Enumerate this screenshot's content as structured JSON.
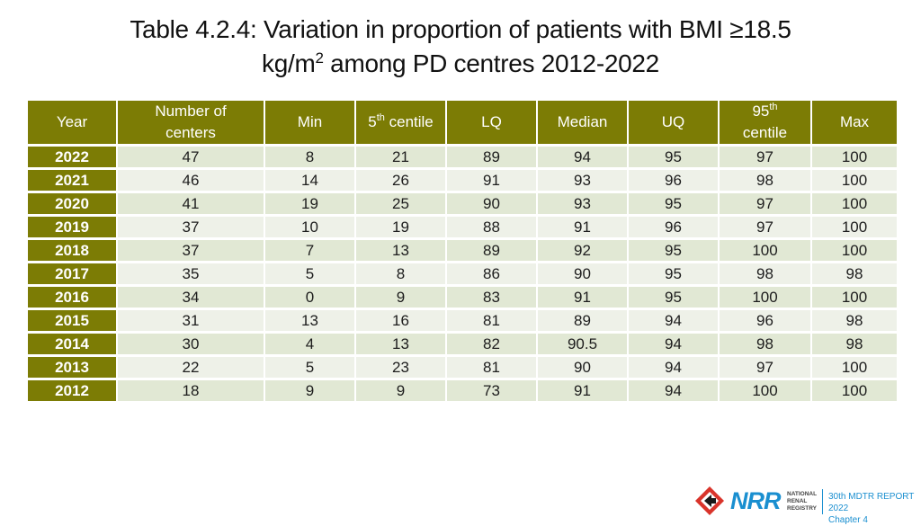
{
  "title": {
    "line1": "Table 4.2.4: Variation in proportion of patients with BMI ≥18.5",
    "line2_pre": "kg/m",
    "line2_sup": "2",
    "line2_post": " among PD centres 2012-2022"
  },
  "table": {
    "headers": {
      "year": "Year",
      "centers_a": "Number of",
      "centers_b": "centers",
      "min": "Min",
      "p5_num": "5",
      "p5_sup": "th",
      "p5_rest": " centile",
      "lq": "LQ",
      "median": "Median",
      "uq": "UQ",
      "p95_num": "95",
      "p95_sup": "th",
      "p95_rest": "centile",
      "max": "Max"
    },
    "rows": [
      {
        "year": "2022",
        "centers": "47",
        "min": "8",
        "p5": "21",
        "lq": "89",
        "median": "94",
        "uq": "95",
        "p95": "97",
        "max": "100"
      },
      {
        "year": "2021",
        "centers": "46",
        "min": "14",
        "p5": "26",
        "lq": "91",
        "median": "93",
        "uq": "96",
        "p95": "98",
        "max": "100"
      },
      {
        "year": "2020",
        "centers": "41",
        "min": "19",
        "p5": "25",
        "lq": "90",
        "median": "93",
        "uq": "95",
        "p95": "97",
        "max": "100"
      },
      {
        "year": "2019",
        "centers": "37",
        "min": "10",
        "p5": "19",
        "lq": "88",
        "median": "91",
        "uq": "96",
        "p95": "97",
        "max": "100"
      },
      {
        "year": "2018",
        "centers": "37",
        "min": "7",
        "p5": "13",
        "lq": "89",
        "median": "92",
        "uq": "95",
        "p95": "100",
        "max": "100"
      },
      {
        "year": "2017",
        "centers": "35",
        "min": "5",
        "p5": "8",
        "lq": "86",
        "median": "90",
        "uq": "95",
        "p95": "98",
        "max": "98"
      },
      {
        "year": "2016",
        "centers": "34",
        "min": "0",
        "p5": "9",
        "lq": "83",
        "median": "91",
        "uq": "95",
        "p95": "100",
        "max": "100"
      },
      {
        "year": "2015",
        "centers": "31",
        "min": "13",
        "p5": "16",
        "lq": "81",
        "median": "89",
        "uq": "94",
        "p95": "96",
        "max": "98"
      },
      {
        "year": "2014",
        "centers": "30",
        "min": "4",
        "p5": "13",
        "lq": "82",
        "median": "90.5",
        "uq": "94",
        "p95": "98",
        "max": "98"
      },
      {
        "year": "2013",
        "centers": "22",
        "min": "5",
        "p5": "23",
        "lq": "81",
        "median": "90",
        "uq": "94",
        "p95": "97",
        "max": "100"
      },
      {
        "year": "2012",
        "centers": "18",
        "min": "9",
        "p5": "9",
        "lq": "73",
        "median": "91",
        "uq": "94",
        "p95": "100",
        "max": "100"
      }
    ]
  },
  "logo": {
    "brand": "NRR",
    "registry_line1": "NATIONAL",
    "registry_line2": "RENAL",
    "registry_line3": "REGISTRY",
    "report_line1": "30th MDTR REPORT 2022",
    "report_line2": "Chapter 4",
    "icon": "registry-arrow-icon"
  },
  "colors": {
    "header_bg": "#7c7c05",
    "row_odd": "#e1e8d4",
    "row_even": "#eef1e8",
    "brand_blue": "#1a8fd0",
    "brand_red": "#d9342b"
  }
}
